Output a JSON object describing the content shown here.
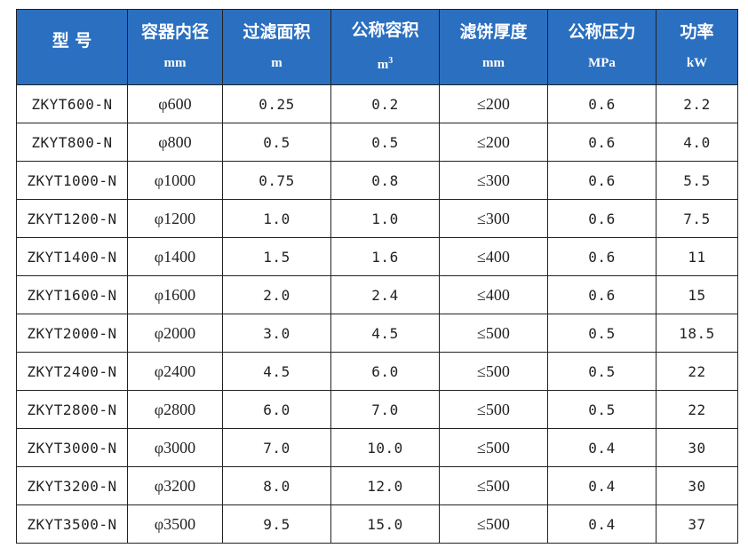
{
  "headers": [
    {
      "title": "型 号",
      "unit": "",
      "sup": ""
    },
    {
      "title": "容器内径",
      "unit": "mm",
      "sup": ""
    },
    {
      "title": "过滤面积",
      "unit": "m",
      "sup": ""
    },
    {
      "title": "公称容积",
      "unit": "m",
      "sup": "3"
    },
    {
      "title": "滤饼厚度",
      "unit": "mm",
      "sup": ""
    },
    {
      "title": "公称压力",
      "unit": "MPa",
      "sup": ""
    },
    {
      "title": "功率",
      "unit": "kW",
      "sup": ""
    }
  ],
  "rows": [
    [
      "ZKYT600-N",
      "φ600",
      "0.25",
      "0.2",
      "≤200",
      "0.6",
      "2.2"
    ],
    [
      "ZKYT800-N",
      "φ800",
      "0.5",
      "0.5",
      "≤200",
      "0.6",
      "4.0"
    ],
    [
      "ZKYT1000-N",
      "φ1000",
      "0.75",
      "0.8",
      "≤300",
      "0.6",
      "5.5"
    ],
    [
      "ZKYT1200-N",
      "φ1200",
      "1.0",
      "1.0",
      "≤300",
      "0.6",
      "7.5"
    ],
    [
      "ZKYT1400-N",
      "φ1400",
      "1.5",
      "1.6",
      "≤400",
      "0.6",
      "11"
    ],
    [
      "ZKYT1600-N",
      "φ1600",
      "2.0",
      "2.4",
      "≤400",
      "0.6",
      "15"
    ],
    [
      "ZKYT2000-N",
      "φ2000",
      "3.0",
      "4.5",
      "≤500",
      "0.5",
      "18.5"
    ],
    [
      "ZKYT2400-N",
      "φ2400",
      "4.5",
      "6.0",
      "≤500",
      "0.5",
      "22"
    ],
    [
      "ZKYT2800-N",
      "φ2800",
      "6.0",
      "7.0",
      "≤500",
      "0.5",
      "22"
    ],
    [
      "ZKYT3000-N",
      "φ3000",
      "7.0",
      "10.0",
      "≤500",
      "0.4",
      "30"
    ],
    [
      "ZKYT3200-N",
      "φ3200",
      "8.0",
      "12.0",
      "≤500",
      "0.4",
      "30"
    ],
    [
      "ZKYT3500-N",
      "φ3500",
      "9.5",
      "15.0",
      "≤500",
      "0.4",
      "37"
    ]
  ]
}
